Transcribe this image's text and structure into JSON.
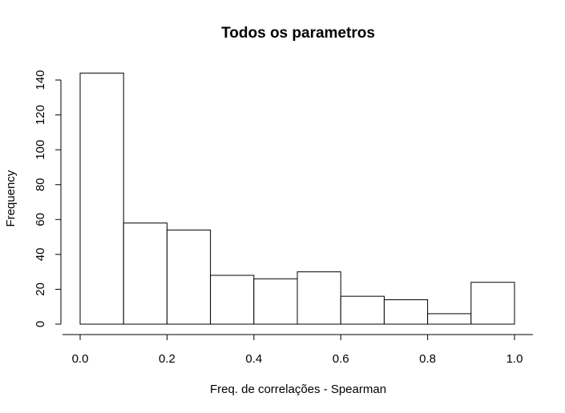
{
  "chart_data": {
    "type": "bar",
    "title": "Todos os parametros",
    "xlabel": "Freq. de correlações - Spearman",
    "ylabel": "Frequency",
    "bins": [
      {
        "start": 0.0,
        "end": 0.1,
        "count": 144
      },
      {
        "start": 0.1,
        "end": 0.2,
        "count": 58
      },
      {
        "start": 0.2,
        "end": 0.3,
        "count": 54
      },
      {
        "start": 0.3,
        "end": 0.4,
        "count": 28
      },
      {
        "start": 0.4,
        "end": 0.5,
        "count": 26
      },
      {
        "start": 0.5,
        "end": 0.6,
        "count": 30
      },
      {
        "start": 0.6,
        "end": 0.7,
        "count": 16
      },
      {
        "start": 0.7,
        "end": 0.8,
        "count": 14
      },
      {
        "start": 0.8,
        "end": 0.9,
        "count": 6
      },
      {
        "start": 0.9,
        "end": 1.0,
        "count": 24
      }
    ],
    "xlim": [
      0,
      1
    ],
    "ylim": [
      0,
      140
    ],
    "x_ticks": [
      0.0,
      0.2,
      0.4,
      0.6,
      0.8,
      1.0
    ],
    "x_tick_labels": [
      "0.0",
      "0.2",
      "0.4",
      "0.6",
      "0.8",
      "1.0"
    ],
    "y_ticks": [
      0,
      20,
      40,
      60,
      80,
      100,
      120,
      140
    ],
    "y_tick_labels": [
      "0",
      "20",
      "40",
      "60",
      "80",
      "100",
      "120",
      "140"
    ],
    "grid": false,
    "bar_fill": "#ffffff",
    "bar_stroke": "#000000"
  }
}
